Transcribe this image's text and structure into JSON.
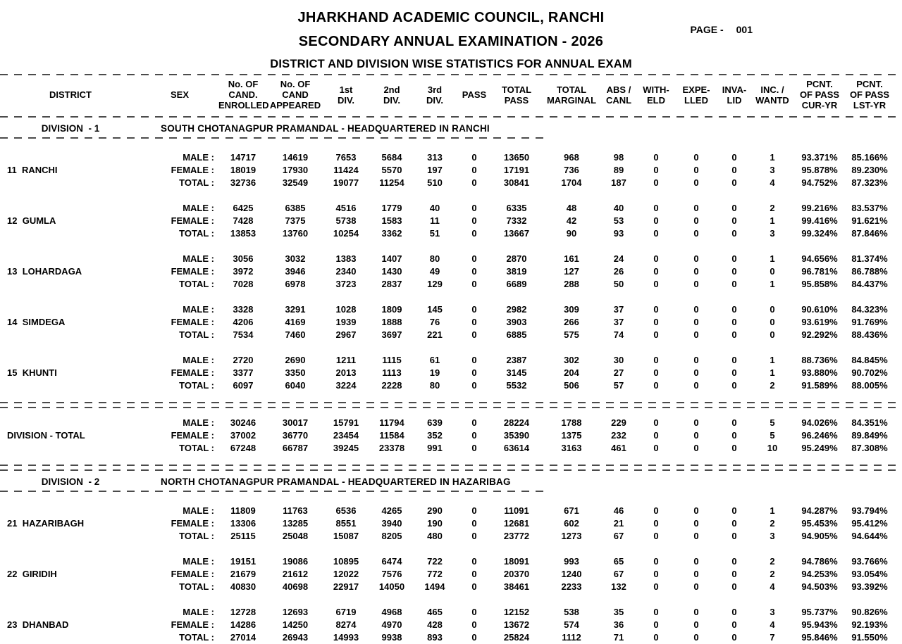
{
  "header": {
    "title1": "JHARKHAND ACADEMIC COUNCIL, RANCHI",
    "title2": "SECONDARY ANNUAL EXAMINATION - 2026",
    "title3": "DISTRICT AND DIVISION WISE STATISTICS FOR ANNUAL EXAM",
    "page_label": "PAGE -",
    "page_number": "001"
  },
  "table": {
    "columns": [
      {
        "key": "district",
        "label": "DISTRICT"
      },
      {
        "key": "sex",
        "label": "SEX"
      },
      {
        "key": "enrolled",
        "label": "No. OF\nCAND.\nENROLLED"
      },
      {
        "key": "appeared",
        "label": "No. OF\nCAND\nAPPEARED"
      },
      {
        "key": "div1",
        "label": "1st\nDIV."
      },
      {
        "key": "div2",
        "label": "2nd\nDIV."
      },
      {
        "key": "div3",
        "label": "3rd\nDIV."
      },
      {
        "key": "pass",
        "label": "PASS"
      },
      {
        "key": "total_pass",
        "label": "TOTAL\nPASS"
      },
      {
        "key": "total_marginal",
        "label": "TOTAL\nMARGINAL"
      },
      {
        "key": "abs_canl",
        "label": "ABS /\nCANL"
      },
      {
        "key": "witheld",
        "label": "WITH-\nELD"
      },
      {
        "key": "expelled",
        "label": "EXPE-\nLLED"
      },
      {
        "key": "invalid",
        "label": "INVA-\nLID"
      },
      {
        "key": "inc_wantd",
        "label": "INC. /\nWANTD"
      },
      {
        "key": "pcnt_pass_cur",
        "label": "PCNT.\nOF PASS\nCUR-YR"
      },
      {
        "key": "pcnt_pass_lst",
        "label": "PCNT.\nOF PASS\nLST-YR"
      }
    ],
    "sex_labels": {
      "male": "MALE :",
      "female": "FEMALE :",
      "total": "TOTAL :"
    },
    "divisions": [
      {
        "label": "DIVISION  - 1",
        "subtitle": "SOUTH CHOTANAGPUR PRAMANDAL - HEADQUARTERED IN RANCHI",
        "districts": [
          {
            "code": "11",
            "name": "RANCHI",
            "rows": {
              "male": [
                "14717",
                "14619",
                "7653",
                "5684",
                "313",
                "0",
                "13650",
                "968",
                "98",
                "0",
                "0",
                "0",
                "1",
                "93.371%",
                "85.166%"
              ],
              "female": [
                "18019",
                "17930",
                "11424",
                "5570",
                "197",
                "0",
                "17191",
                "736",
                "89",
                "0",
                "0",
                "0",
                "3",
                "95.878%",
                "89.230%"
              ],
              "total": [
                "32736",
                "32549",
                "19077",
                "11254",
                "510",
                "0",
                "30841",
                "1704",
                "187",
                "0",
                "0",
                "0",
                "4",
                "94.752%",
                "87.323%"
              ]
            }
          },
          {
            "code": "12",
            "name": "GUMLA",
            "rows": {
              "male": [
                "6425",
                "6385",
                "4516",
                "1779",
                "40",
                "0",
                "6335",
                "48",
                "40",
                "0",
                "0",
                "0",
                "2",
                "99.216%",
                "83.537%"
              ],
              "female": [
                "7428",
                "7375",
                "5738",
                "1583",
                "11",
                "0",
                "7332",
                "42",
                "53",
                "0",
                "0",
                "0",
                "1",
                "99.416%",
                "91.621%"
              ],
              "total": [
                "13853",
                "13760",
                "10254",
                "3362",
                "51",
                "0",
                "13667",
                "90",
                "93",
                "0",
                "0",
                "0",
                "3",
                "99.324%",
                "87.846%"
              ]
            }
          },
          {
            "code": "13",
            "name": "LOHARDAGA",
            "rows": {
              "male": [
                "3056",
                "3032",
                "1383",
                "1407",
                "80",
                "0",
                "2870",
                "161",
                "24",
                "0",
                "0",
                "0",
                "1",
                "94.656%",
                "81.374%"
              ],
              "female": [
                "3972",
                "3946",
                "2340",
                "1430",
                "49",
                "0",
                "3819",
                "127",
                "26",
                "0",
                "0",
                "0",
                "0",
                "96.781%",
                "86.788%"
              ],
              "total": [
                "7028",
                "6978",
                "3723",
                "2837",
                "129",
                "0",
                "6689",
                "288",
                "50",
                "0",
                "0",
                "0",
                "1",
                "95.858%",
                "84.437%"
              ]
            }
          },
          {
            "code": "14",
            "name": "SIMDEGA",
            "rows": {
              "male": [
                "3328",
                "3291",
                "1028",
                "1809",
                "145",
                "0",
                "2982",
                "309",
                "37",
                "0",
                "0",
                "0",
                "0",
                "90.610%",
                "84.323%"
              ],
              "female": [
                "4206",
                "4169",
                "1939",
                "1888",
                "76",
                "0",
                "3903",
                "266",
                "37",
                "0",
                "0",
                "0",
                "0",
                "93.619%",
                "91.769%"
              ],
              "total": [
                "7534",
                "7460",
                "2967",
                "3697",
                "221",
                "0",
                "6885",
                "575",
                "74",
                "0",
                "0",
                "0",
                "0",
                "92.292%",
                "88.436%"
              ]
            }
          },
          {
            "code": "15",
            "name": "KHUNTI",
            "rows": {
              "male": [
                "2720",
                "2690",
                "1211",
                "1115",
                "61",
                "0",
                "2387",
                "302",
                "30",
                "0",
                "0",
                "0",
                "1",
                "88.736%",
                "84.845%"
              ],
              "female": [
                "3377",
                "3350",
                "2013",
                "1113",
                "19",
                "0",
                "3145",
                "204",
                "27",
                "0",
                "0",
                "0",
                "1",
                "93.880%",
                "90.702%"
              ],
              "total": [
                "6097",
                "6040",
                "3224",
                "2228",
                "80",
                "0",
                "5532",
                "506",
                "57",
                "0",
                "0",
                "0",
                "2",
                "91.589%",
                "88.005%"
              ]
            }
          }
        ],
        "total": {
          "label": "DIVISION - TOTAL",
          "rows": {
            "male": [
              "30246",
              "30017",
              "15791",
              "11794",
              "639",
              "0",
              "28224",
              "1788",
              "229",
              "0",
              "0",
              "0",
              "5",
              "94.026%",
              "84.351%"
            ],
            "female": [
              "37002",
              "36770",
              "23454",
              "11584",
              "352",
              "0",
              "35390",
              "1375",
              "232",
              "0",
              "0",
              "0",
              "5",
              "96.246%",
              "89.849%"
            ],
            "total": [
              "67248",
              "66787",
              "39245",
              "23378",
              "991",
              "0",
              "63614",
              "3163",
              "461",
              "0",
              "0",
              "0",
              "10",
              "95.249%",
              "87.308%"
            ]
          }
        }
      },
      {
        "label": "DIVISION  - 2",
        "subtitle": "NORTH CHOTANAGPUR PRAMANDAL - HEADQUARTERED IN HAZARIBAG",
        "districts": [
          {
            "code": "21",
            "name": "HAZARIBAGH",
            "rows": {
              "male": [
                "11809",
                "11763",
                "6536",
                "4265",
                "290",
                "0",
                "11091",
                "671",
                "46",
                "0",
                "0",
                "0",
                "1",
                "94.287%",
                "93.794%"
              ],
              "female": [
                "13306",
                "13285",
                "8551",
                "3940",
                "190",
                "0",
                "12681",
                "602",
                "21",
                "0",
                "0",
                "0",
                "2",
                "95.453%",
                "95.412%"
              ],
              "total": [
                "25115",
                "25048",
                "15087",
                "8205",
                "480",
                "0",
                "23772",
                "1273",
                "67",
                "0",
                "0",
                "0",
                "3",
                "94.905%",
                "94.644%"
              ]
            }
          },
          {
            "code": "22",
            "name": "GIRIDIH",
            "rows": {
              "male": [
                "19151",
                "19086",
                "10895",
                "6474",
                "722",
                "0",
                "18091",
                "993",
                "65",
                "0",
                "0",
                "0",
                "2",
                "94.786%",
                "93.766%"
              ],
              "female": [
                "21679",
                "21612",
                "12022",
                "7576",
                "772",
                "0",
                "20370",
                "1240",
                "67",
                "0",
                "0",
                "0",
                "2",
                "94.253%",
                "93.054%"
              ],
              "total": [
                "40830",
                "40698",
                "22917",
                "14050",
                "1494",
                "0",
                "38461",
                "2233",
                "132",
                "0",
                "0",
                "0",
                "4",
                "94.503%",
                "93.392%"
              ]
            }
          },
          {
            "code": "23",
            "name": "DHANBAD",
            "rows": {
              "male": [
                "12728",
                "12693",
                "6719",
                "4968",
                "465",
                "0",
                "12152",
                "538",
                "35",
                "0",
                "0",
                "0",
                "3",
                "95.737%",
                "90.826%"
              ],
              "female": [
                "14286",
                "14250",
                "8274",
                "4970",
                "428",
                "0",
                "13672",
                "574",
                "36",
                "0",
                "0",
                "0",
                "4",
                "95.943%",
                "92.193%"
              ],
              "total": [
                "27014",
                "26943",
                "14993",
                "9938",
                "893",
                "0",
                "25824",
                "1112",
                "71",
                "0",
                "0",
                "0",
                "7",
                "95.846%",
                "91.550%"
              ]
            }
          }
        ],
        "total": null
      }
    ]
  }
}
